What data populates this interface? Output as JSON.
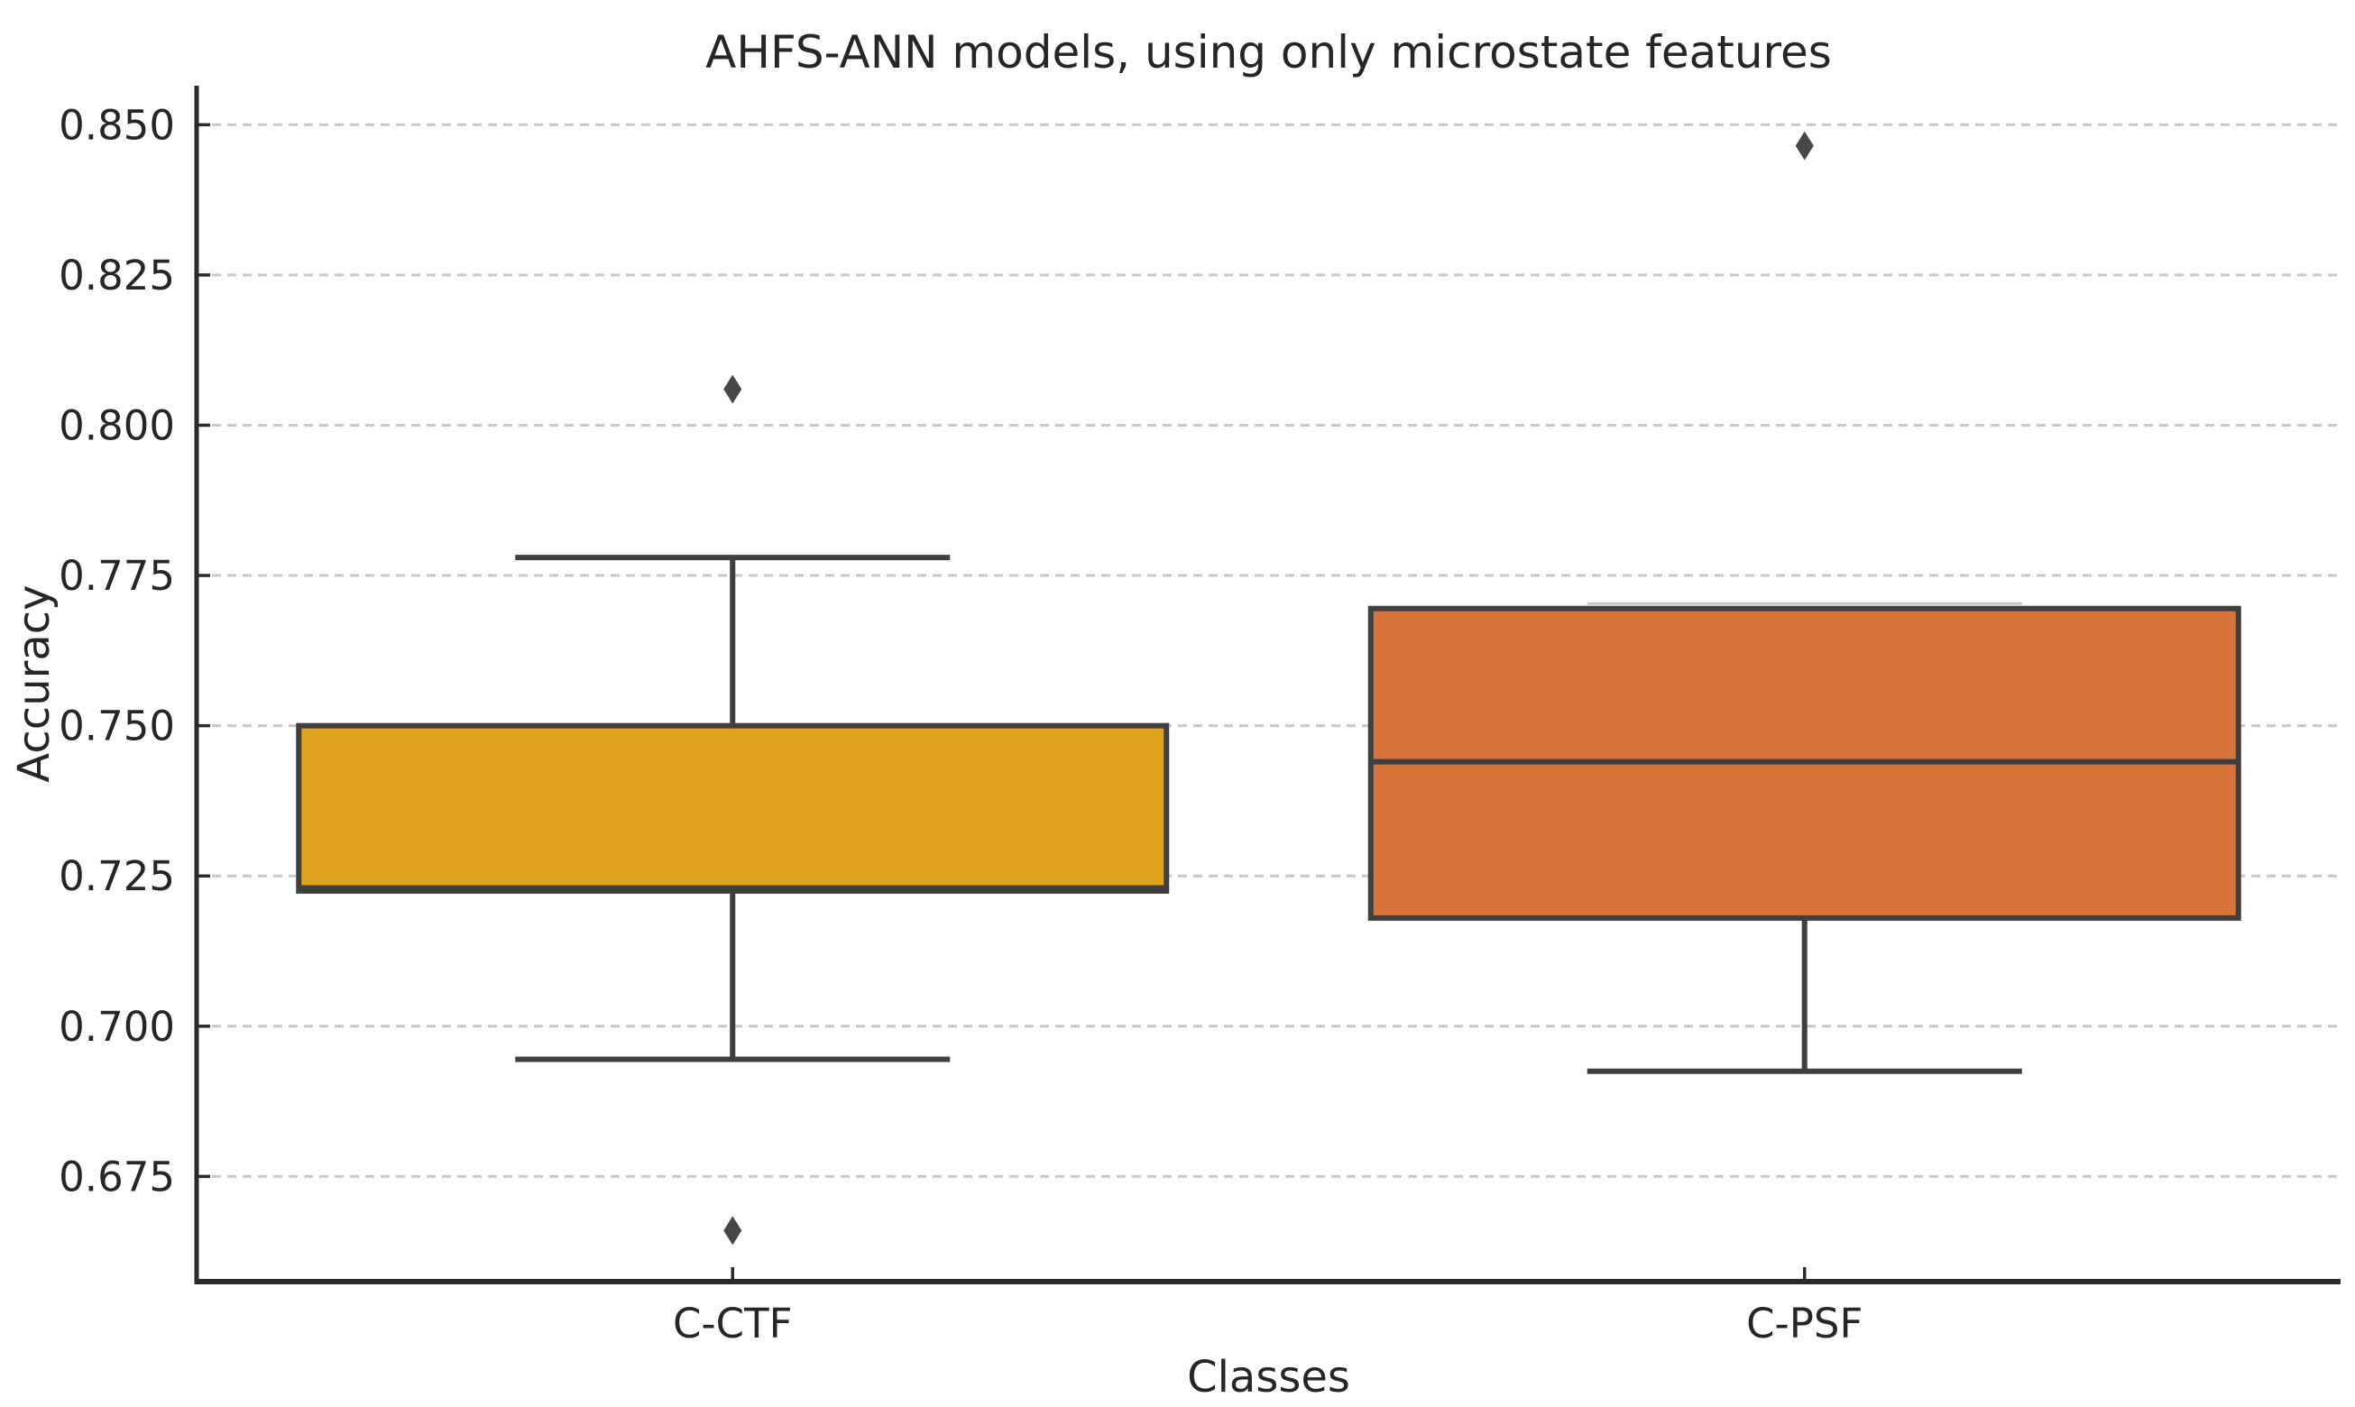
{
  "chart_data": {
    "type": "box",
    "title": "AHFS-ANN models, using only microstate features",
    "xlabel": "Classes",
    "ylabel": "Accuracy",
    "categories": [
      "C-CTF",
      "C-PSF"
    ],
    "ylim": [
      0.6575,
      0.8565
    ],
    "yticks": [
      0.675,
      0.7,
      0.725,
      0.75,
      0.775,
      0.8,
      0.825,
      0.85
    ],
    "ytick_decimals": 3,
    "grid": "horizontal-dashed",
    "legend": "none",
    "series": [
      {
        "name": "C-CTF",
        "color": "#dfa320",
        "q1": 0.7225,
        "median": 0.723,
        "q3": 0.75,
        "whisker_low": 0.6945,
        "whisker_high": 0.778,
        "outliers": [
          0.806,
          0.666
        ]
      },
      {
        "name": "C-PSF",
        "color": "#d8733b",
        "q1": 0.718,
        "median": 0.744,
        "q3": 0.7695,
        "whisker_low": 0.6925,
        "whisker_high": 0.7695,
        "outliers": [
          0.8465
        ]
      }
    ],
    "colors": {
      "box_edge": "#3f3f3f",
      "whisker": "#3f3f3f",
      "outlier_marker": "#474747",
      "grid_line": "#c9c9c9",
      "spine": "#2a2a2a",
      "text": "#262626"
    }
  }
}
